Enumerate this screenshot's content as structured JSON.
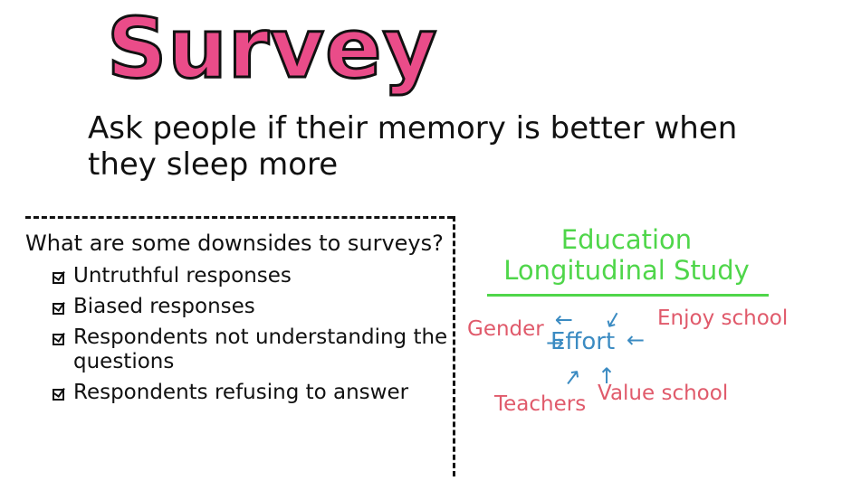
{
  "title": "Survey",
  "prompt": "Ask people if their memory is better when they sleep more",
  "downsides": {
    "question": "What are some downsides to surveys?",
    "items": [
      "Untruthful responses",
      "Biased responses",
      "Respondents not understanding the questions",
      "Respondents refusing to answer"
    ]
  },
  "study": {
    "title": "Education Longitudinal Study",
    "center": "Effort",
    "factors": {
      "gender": "Gender",
      "enjoy_school": "Enjoy school",
      "teachers": "Teachers",
      "value_school": "Value school"
    }
  },
  "colors": {
    "title_fill": "#ea4c89",
    "study_title": "#4fd64a",
    "factor_text": "#e05a6b",
    "center_and_arrows": "#3b8bc2",
    "ink": "#111111"
  },
  "icons": [
    "checkbox-icon",
    "arrow-icon"
  ]
}
